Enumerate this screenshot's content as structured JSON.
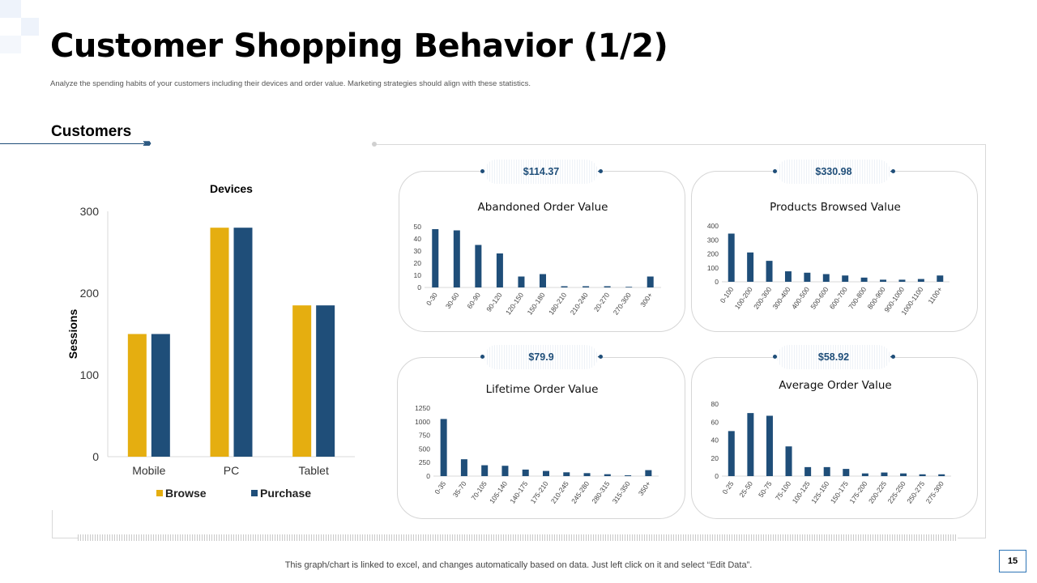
{
  "page": {
    "title": "Customer Shopping Behavior (1/2)",
    "subtitle": "Analyze the spending habits of your customers including their devices and order value. Marketing strategies should align  with these statistics.",
    "section_label": "Customers",
    "footer": "This graph/chart is linked to excel,  and changes automatically based on data. Just left click on it and select “Edit Data”.",
    "page_number": "15"
  },
  "colors": {
    "browse": "#E5AE10",
    "purchase": "#1F4E79",
    "bars": "#1F4E79",
    "accent": "#1F4E79"
  },
  "chart_data": [
    {
      "id": "devices",
      "type": "bar",
      "title": "Devices",
      "ylabel": "Sessions",
      "xlabel": "",
      "categories": [
        "Mobile",
        "PC",
        "Tablet"
      ],
      "series": [
        {
          "name": "Browse",
          "values": [
            150,
            280,
            185
          ]
        },
        {
          "name": "Purchase",
          "values": [
            150,
            280,
            185
          ]
        }
      ],
      "ylim": [
        0,
        300
      ],
      "yticks": [
        0,
        100,
        200,
        300
      ],
      "grid": false,
      "legend": "bottom"
    },
    {
      "id": "abandoned",
      "type": "bar",
      "title": "Abandoned Order Value",
      "badge": "$114.37",
      "categories": [
        "0-30",
        "30-60",
        "60-90",
        "90-120",
        "120-150",
        "150-180",
        "180-210",
        "210-240",
        "20-270",
        "270-300",
        "300+"
      ],
      "values": [
        48,
        47,
        35,
        28,
        9,
        11,
        1,
        1,
        1,
        0.5,
        9
      ],
      "ylim": [
        0,
        50
      ],
      "yticks": [
        0,
        10,
        20,
        30,
        40,
        50
      ]
    },
    {
      "id": "browsed",
      "type": "bar",
      "title": "Products Browsed Value",
      "badge": "$330.98",
      "categories": [
        "0-100",
        "100-200",
        "200-300",
        "300-400",
        "400-500",
        "500-600",
        "600-700",
        "700-800",
        "800-900",
        "900-1000",
        "1000-1100",
        "1100+"
      ],
      "values": [
        345,
        210,
        150,
        75,
        65,
        55,
        45,
        30,
        15,
        15,
        20,
        45
      ],
      "ylim": [
        0,
        400
      ],
      "yticks": [
        0,
        100,
        200,
        300,
        400
      ]
    },
    {
      "id": "lifetime",
      "type": "bar",
      "title": "Lifetime Order Value",
      "badge": "$79.9",
      "categories": [
        "0-35",
        "35-70",
        "70-105",
        "105-140",
        "140-175",
        "175-210",
        "210-245",
        "245-280",
        "280-315",
        "315-350",
        "350+"
      ],
      "values": [
        1050,
        310,
        200,
        190,
        120,
        95,
        70,
        55,
        35,
        15,
        110
      ],
      "ylim": [
        0,
        1250
      ],
      "yticks": [
        0,
        250,
        500,
        750,
        1000,
        1250
      ]
    },
    {
      "id": "average",
      "type": "bar",
      "title": "Average Order Value",
      "badge": "$58.92",
      "categories": [
        "0-25",
        "25-50",
        "50-75",
        "75-100",
        "100-125",
        "125-150",
        "150-175",
        "175-200",
        "200-225",
        "225-250",
        "250-275",
        "275-300"
      ],
      "values": [
        50,
        70,
        67,
        33,
        10,
        10,
        8,
        3,
        4,
        3,
        2,
        2
      ],
      "ylim": [
        0,
        80
      ],
      "yticks": [
        0,
        20,
        40,
        60,
        80
      ]
    }
  ]
}
